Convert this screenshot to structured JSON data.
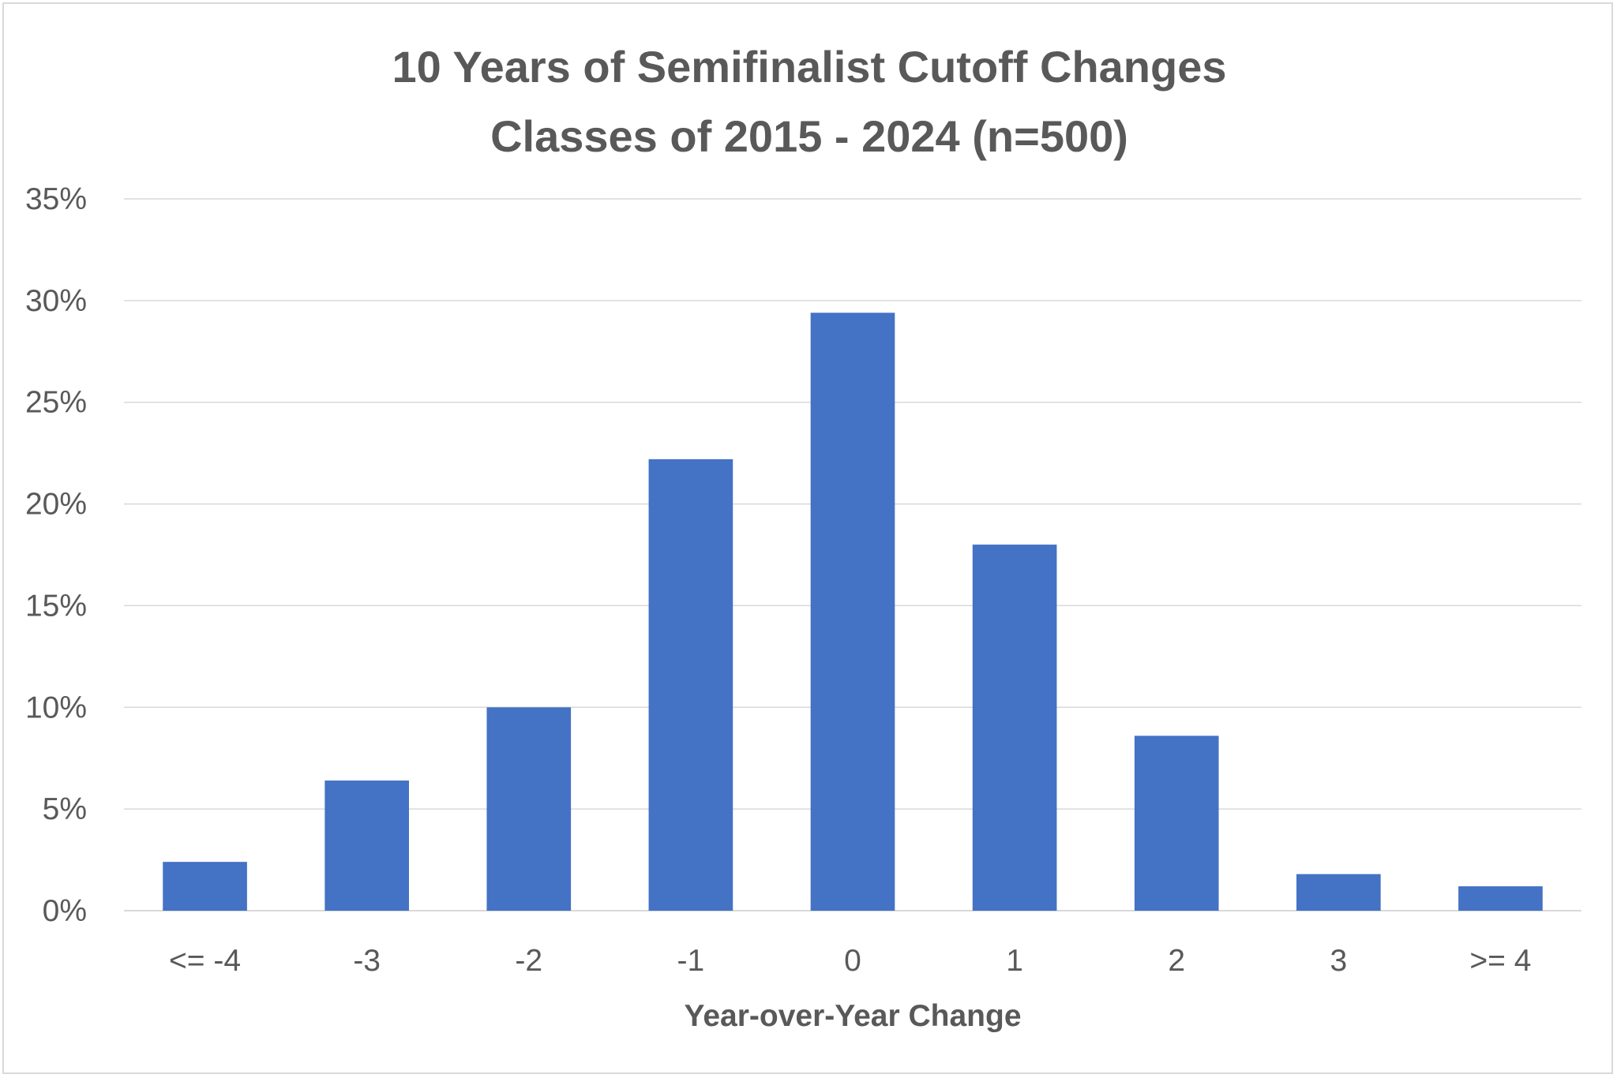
{
  "chart_data": {
    "type": "bar",
    "title": "10 Years of Semifinalist Cutoff Changes",
    "subtitle": "Classes of 2015 - 2024 (n=500)",
    "xlabel": "Year-over-Year Change",
    "ylabel": "",
    "categories": [
      "<= -4",
      "-3",
      "-2",
      "-1",
      "0",
      "1",
      "2",
      "3",
      ">= 4"
    ],
    "values": [
      2.4,
      6.4,
      10.0,
      22.2,
      29.4,
      18.0,
      8.6,
      1.8,
      1.2
    ],
    "value_unit": "%",
    "ylim": [
      0,
      35
    ],
    "yticks": [
      0,
      5,
      10,
      15,
      20,
      25,
      30,
      35
    ],
    "ytick_labels": [
      "0%",
      "5%",
      "10%",
      "15%",
      "20%",
      "25%",
      "30%",
      "35%"
    ],
    "grid": true,
    "legend": "none",
    "colors": {
      "bar": "#4472c4",
      "grid": "#d9d9d9",
      "text": "#595959"
    }
  }
}
